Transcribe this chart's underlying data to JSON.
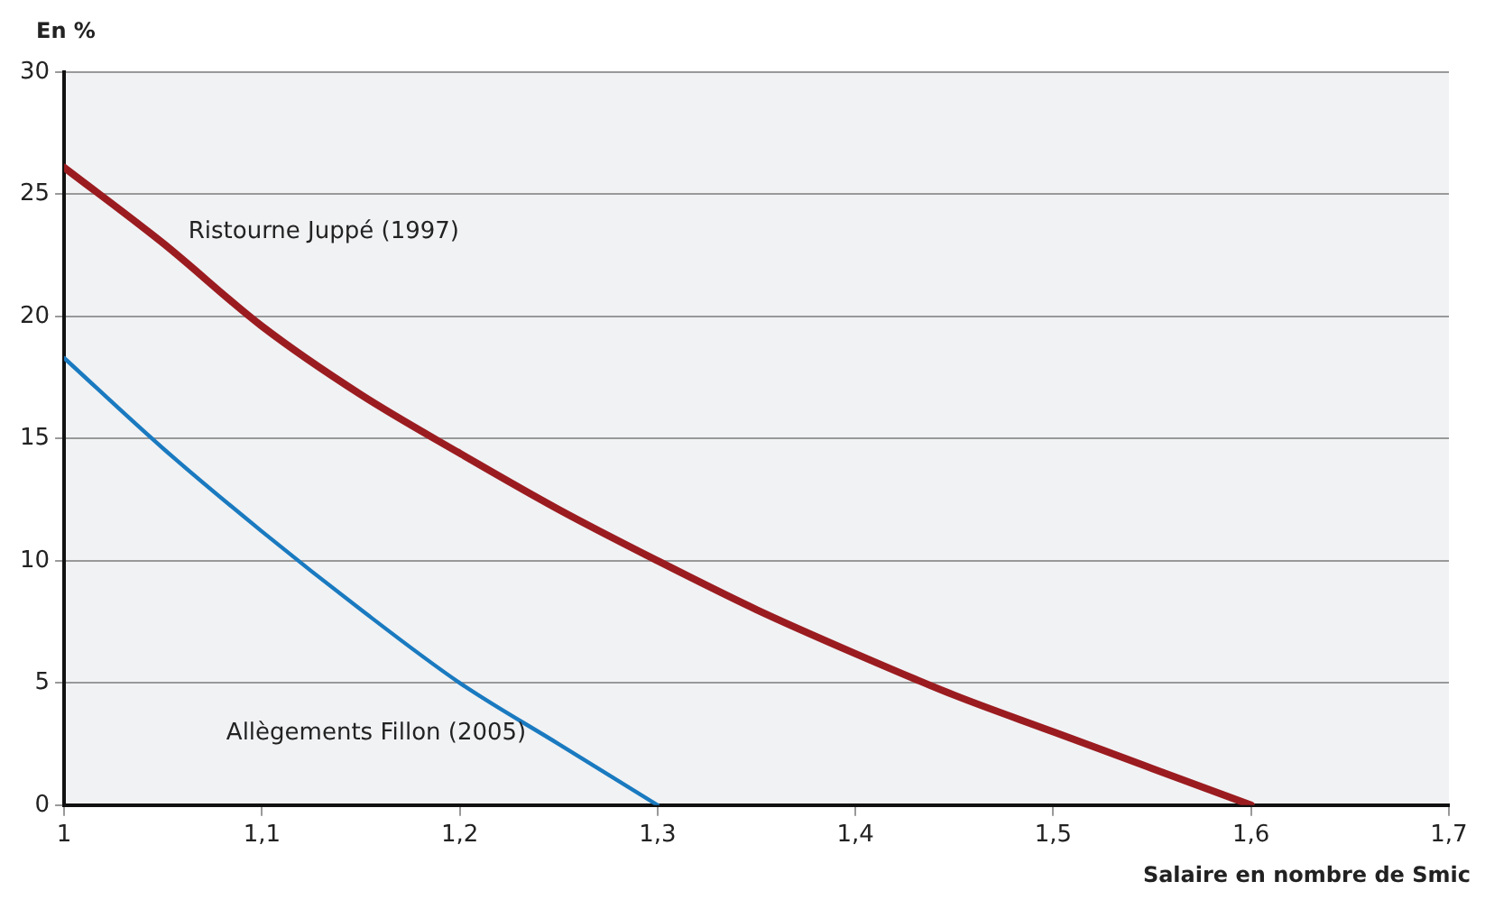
{
  "chart_data": {
    "type": "line",
    "ylabel": "En %",
    "xlabel": "Salaire en nombre de Smic",
    "x": [
      1,
      1.05,
      1.1,
      1.15,
      1.2,
      1.25,
      1.3,
      1.35,
      1.4,
      1.45,
      1.5,
      1.55,
      1.6
    ],
    "series": [
      {
        "name": "Ristourne Juppé (1997)",
        "color": "#9b1c20",
        "values": [
          26.1,
          23,
          19.6,
          16.8,
          14.4,
          12.1,
          10,
          8,
          6.2,
          4.5,
          3,
          1.5,
          0
        ]
      },
      {
        "name": "Allègements Fillon (2005)",
        "color": "#1a7ac0",
        "x": [
          1,
          1.05,
          1.1,
          1.15,
          1.2,
          1.25,
          1.3
        ],
        "values": [
          18.3,
          14.6,
          11.2,
          8,
          5,
          2.5,
          0
        ]
      }
    ],
    "xlim": [
      1,
      1.7
    ],
    "xticks": [
      {
        "value": 1,
        "label": "1"
      },
      {
        "value": 1.1,
        "label": "1,1"
      },
      {
        "value": 1.2,
        "label": "1,2"
      },
      {
        "value": 1.3,
        "label": "1,3"
      },
      {
        "value": 1.4,
        "label": "1,4"
      },
      {
        "value": 1.5,
        "label": "1,5"
      },
      {
        "value": 1.6,
        "label": "1,6"
      },
      {
        "value": 1.7,
        "label": "1,7"
      }
    ],
    "ylim": [
      0,
      30
    ],
    "yticks": [
      0,
      5,
      10,
      15,
      20,
      25,
      30
    ],
    "grid": "y",
    "legend": false,
    "marker": "none",
    "line_style": "solid"
  }
}
